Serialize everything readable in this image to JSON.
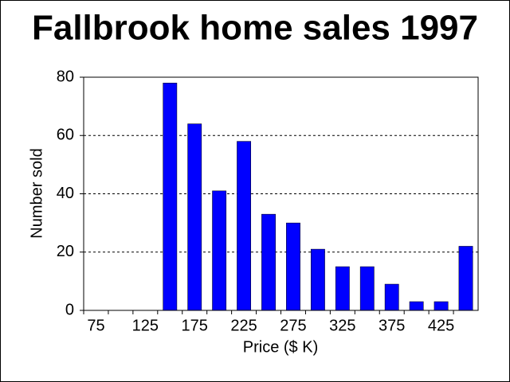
{
  "chart_data": {
    "type": "bar",
    "title": "Fallbrook home sales 1997",
    "x_label": "Price ($ K)",
    "y_label": "Number sold",
    "categories": [
      "75",
      null,
      "125",
      null,
      "175",
      null,
      "225",
      null,
      "275",
      null,
      "325",
      null,
      "375",
      null,
      "425",
      null
    ],
    "values": [
      0,
      0,
      0,
      78,
      64,
      41,
      58,
      33,
      30,
      21,
      15,
      15,
      9,
      3,
      3,
      22
    ],
    "color": "#0000ff",
    "ylim": [
      0,
      80
    ],
    "yticks": [
      0,
      20,
      40,
      60,
      80
    ],
    "grid": true
  }
}
